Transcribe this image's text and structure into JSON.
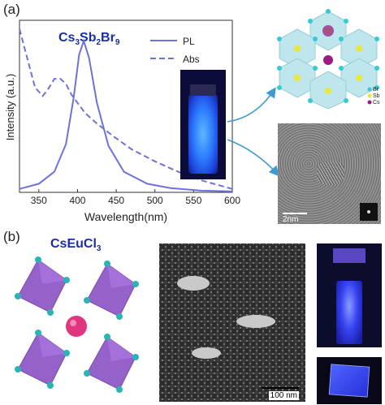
{
  "panel_a_label": "(a)",
  "panel_b_label": "(b)",
  "compound_a": {
    "base": "Cs",
    "s1": "3",
    "mid": "Sb",
    "s2": "2",
    "end": "Br",
    "s3": "9"
  },
  "compound_b": "CsEuCl",
  "compound_b_sub": "3",
  "chart_data": {
    "type": "line",
    "xlabel": "Wavelength(nm)",
    "ylabel": "Intensity (a.u.)",
    "xlim": [
      325,
      600
    ],
    "xticks": [
      350,
      400,
      450,
      500,
      550,
      600
    ],
    "series": [
      {
        "name": "PL",
        "style": "solid",
        "color": "#6f72d8",
        "x": [
          325,
          350,
          370,
          385,
          395,
          402,
          408,
          415,
          425,
          440,
          460,
          490,
          520,
          560,
          600
        ],
        "y": [
          0.02,
          0.05,
          0.12,
          0.28,
          0.55,
          0.8,
          0.88,
          0.78,
          0.52,
          0.27,
          0.12,
          0.05,
          0.025,
          0.01,
          0.005
        ]
      },
      {
        "name": "Abs",
        "style": "dashed",
        "color": "#6f72d8",
        "x": [
          325,
          335,
          345,
          355,
          362,
          370,
          378,
          385,
          392,
          400,
          410,
          425,
          445,
          470,
          500,
          530,
          560,
          600
        ],
        "y": [
          0.95,
          0.78,
          0.61,
          0.56,
          0.6,
          0.66,
          0.66,
          0.63,
          0.57,
          0.52,
          0.46,
          0.4,
          0.33,
          0.25,
          0.18,
          0.12,
          0.07,
          0.02
        ]
      }
    ]
  },
  "crystal_legend": [
    "Br",
    "Sb",
    "Cs"
  ],
  "crystal_colors": {
    "Br": "#35c9d8",
    "Sb": "#e8e83a",
    "Cs": "#9a1d86"
  },
  "hrtem_scale": "2nm",
  "tem_scale": "100 nm"
}
